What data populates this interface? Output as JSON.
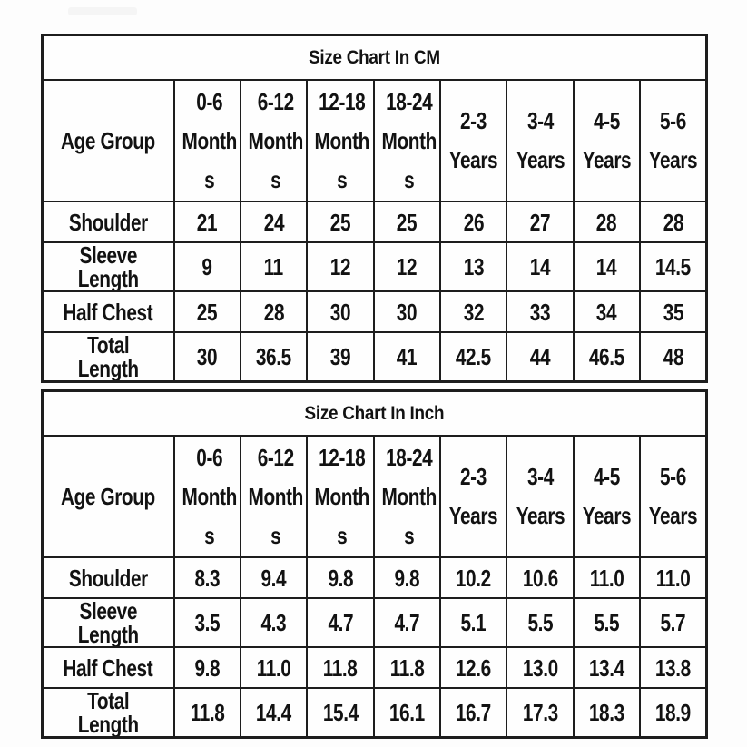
{
  "page": {
    "background": "#fdfdfd",
    "badge_color": "#f5f5f5",
    "text_color": "#121212",
    "border_color": "#1d1d1d"
  },
  "chart_data": [
    {
      "type": "table",
      "title": "Size Chart In CM",
      "columns": [
        {
          "label": "Age Group",
          "display": "Age Group"
        },
        {
          "label": "0-6 Months",
          "display": "0-6\nMonth\ns"
        },
        {
          "label": "6-12 Months",
          "display": "6-12\nMonth\ns"
        },
        {
          "label": "12-18 Months",
          "display": "12-18\nMonth\ns"
        },
        {
          "label": "18-24 Months",
          "display": "18-24\nMonth\ns"
        },
        {
          "label": "2-3 Years",
          "display": "2-3\nYears"
        },
        {
          "label": "3-4 Years",
          "display": "3-4\nYears"
        },
        {
          "label": "4-5 Years",
          "display": "4-5\nYears"
        },
        {
          "label": "5-6 Years",
          "display": "5-6\nYears"
        }
      ],
      "rows": [
        {
          "label": "Shoulder",
          "values": [
            "21",
            "24",
            "25",
            "25",
            "26",
            "27",
            "28",
            "28"
          ]
        },
        {
          "label": "Sleeve Length",
          "values": [
            "9",
            "11",
            "12",
            "12",
            "13",
            "14",
            "14",
            "14.5"
          ]
        },
        {
          "label": "Half Chest",
          "values": [
            "25",
            "28",
            "30",
            "30",
            "32",
            "33",
            "34",
            "35"
          ]
        },
        {
          "label": "Total Length",
          "values": [
            "30",
            "36.5",
            "39",
            "41",
            "42.5",
            "44",
            "46.5",
            "48"
          ]
        }
      ]
    },
    {
      "type": "table",
      "title": "Size Chart In Inch",
      "columns": [
        {
          "label": "Age Group",
          "display": "Age Group"
        },
        {
          "label": "0-6 Months",
          "display": "0-6\nMonth\ns"
        },
        {
          "label": "6-12 Months",
          "display": "6-12\nMonth\ns"
        },
        {
          "label": "12-18 Months",
          "display": "12-18\nMonth\ns"
        },
        {
          "label": "18-24 Months",
          "display": "18-24\nMonth\ns"
        },
        {
          "label": "2-3 Years",
          "display": "2-3\nYears"
        },
        {
          "label": "3-4 Years",
          "display": "3-4\nYears"
        },
        {
          "label": "4-5 Years",
          "display": "4-5\nYears"
        },
        {
          "label": "5-6 Years",
          "display": "5-6\nYears"
        }
      ],
      "rows": [
        {
          "label": "Shoulder",
          "values": [
            "8.3",
            "9.4",
            "9.8",
            "9.8",
            "10.2",
            "10.6",
            "11.0",
            "11.0"
          ]
        },
        {
          "label": "Sleeve Length",
          "values": [
            "3.5",
            "4.3",
            "4.7",
            "4.7",
            "5.1",
            "5.5",
            "5.5",
            "5.7"
          ]
        },
        {
          "label": "Half Chest",
          "values": [
            "9.8",
            "11.0",
            "11.8",
            "11.8",
            "12.6",
            "13.0",
            "13.4",
            "13.8"
          ]
        },
        {
          "label": "Total Length",
          "values": [
            "11.8",
            "14.4",
            "15.4",
            "16.1",
            "16.7",
            "17.3",
            "18.3",
            "18.9"
          ]
        }
      ]
    }
  ]
}
